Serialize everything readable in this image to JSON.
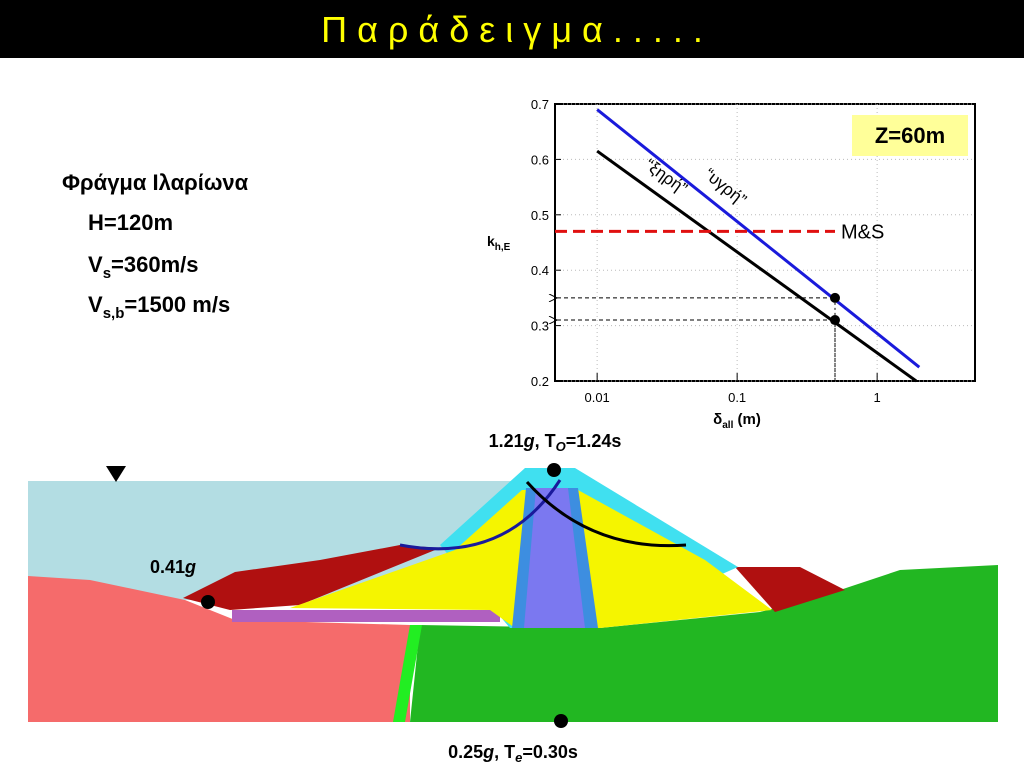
{
  "header": {
    "title": "Π α ρ ά δ ε ι γ μ α . . . . ."
  },
  "dam_info": {
    "name": "Φράγμα Ιλαρίωνα",
    "height": "H=120m",
    "vs": [
      "V",
      "s",
      "=360m/s"
    ],
    "vsb": [
      "V",
      "s,b",
      "=1500 m/s"
    ]
  },
  "chart_data": {
    "type": "line",
    "xscale": "log",
    "grid": true,
    "xlabel": [
      "δ",
      "all",
      " (m)"
    ],
    "ylabel": [
      "k",
      "h,E"
    ],
    "annotation": "Z=60m",
    "xlim": [
      0.005,
      5
    ],
    "ylim": [
      0.2,
      0.7
    ],
    "xticks": [
      0.01,
      0.1,
      1
    ],
    "yticks": [
      0.2,
      0.3,
      0.4,
      0.5,
      0.6,
      0.7
    ],
    "series": [
      {
        "name": "“υγρή”",
        "color": "#1a1adb",
        "style": "solid",
        "x": [
          0.01,
          2
        ],
        "values": [
          0.69,
          0.225
        ]
      },
      {
        "name": "“ξηρή”",
        "color": "#000000",
        "style": "solid",
        "x": [
          0.01,
          1.9
        ],
        "values": [
          0.615,
          0.2
        ]
      },
      {
        "name": "M&S",
        "color": "#e01010",
        "style": "dashed",
        "x": [
          0.005,
          0.5
        ],
        "values": [
          0.47,
          0.47
        ]
      }
    ],
    "markers": {
      "color": "#000000",
      "x": [
        0.5,
        0.5
      ],
      "values": [
        0.35,
        0.31
      ]
    }
  },
  "diagram": {
    "crest_label": [
      "1.21",
      "g",
      ", T",
      "O",
      "=1.24s"
    ],
    "upstream_label": [
      "0.41",
      "g"
    ],
    "base_label": [
      "0.25",
      "g",
      ", T",
      "e",
      "=0.30s"
    ]
  }
}
